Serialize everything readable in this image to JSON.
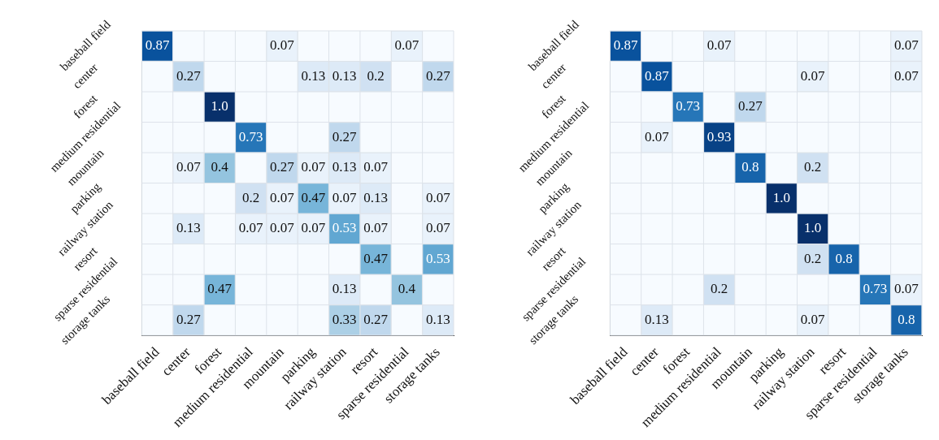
{
  "chart_data": [
    {
      "type": "heatmap",
      "categories": [
        "baseball field",
        "center",
        "forest",
        "medium residential",
        "mountain",
        "parking",
        "railway station",
        "resort",
        "sparse residential",
        "storage tanks"
      ],
      "y_categories": [
        "baseball field",
        "center",
        "forest",
        "medium residential",
        "mountain",
        "parking",
        "railway station",
        "resort",
        "sparse residential",
        "storage tanks"
      ],
      "cells": [
        [
          0.87,
          null,
          null,
          null,
          0.07,
          null,
          null,
          null,
          0.07,
          null
        ],
        [
          null,
          0.27,
          null,
          null,
          null,
          0.13,
          0.13,
          0.2,
          null,
          0.27
        ],
        [
          null,
          null,
          1.0,
          null,
          null,
          null,
          null,
          null,
          null,
          null
        ],
        [
          null,
          null,
          null,
          0.73,
          null,
          null,
          0.27,
          null,
          null,
          null
        ],
        [
          null,
          0.07,
          0.4,
          null,
          0.27,
          0.07,
          0.13,
          0.07,
          null,
          null
        ],
        [
          null,
          null,
          null,
          0.2,
          0.07,
          0.47,
          0.07,
          0.13,
          null,
          0.07
        ],
        [
          null,
          0.13,
          null,
          0.07,
          0.07,
          0.07,
          0.53,
          0.07,
          null,
          0.07
        ],
        [
          null,
          null,
          null,
          null,
          null,
          null,
          null,
          0.47,
          null,
          0.53
        ],
        [
          null,
          null,
          0.47,
          null,
          null,
          null,
          0.13,
          null,
          0.4,
          null
        ],
        [
          null,
          0.27,
          null,
          null,
          null,
          null,
          0.33,
          0.27,
          null,
          0.13
        ]
      ],
      "cell_labels": [
        [
          "0.87",
          null,
          null,
          null,
          "0.07",
          null,
          null,
          null,
          "0.07",
          null
        ],
        [
          null,
          "0.27",
          null,
          null,
          null,
          "0.13",
          "0.13",
          "0.2",
          null,
          "0.27"
        ],
        [
          null,
          null,
          "1.0",
          null,
          null,
          null,
          null,
          null,
          null,
          null
        ],
        [
          null,
          null,
          null,
          "0.73",
          null,
          null,
          "0.27",
          null,
          null,
          null
        ],
        [
          null,
          "0.07",
          "0.4",
          null,
          "0.27",
          "0.07",
          "0.13",
          "0.07",
          null,
          null
        ],
        [
          null,
          null,
          null,
          "0.2",
          "0.07",
          "0.47",
          "0.07",
          "0.13",
          null,
          "0.07"
        ],
        [
          null,
          "0.13",
          null,
          "0.07",
          "0.07",
          "0.07",
          "0.53",
          "0.07",
          null,
          "0.07"
        ],
        [
          null,
          null,
          null,
          null,
          null,
          null,
          null,
          "0.47",
          null,
          "0.53"
        ],
        [
          null,
          null,
          "0.47",
          null,
          null,
          null,
          "0.13",
          null,
          "0.4",
          null
        ],
        [
          null,
          "0.27",
          null,
          null,
          null,
          null,
          "0.33",
          "0.27",
          null,
          "0.13"
        ]
      ]
    },
    {
      "type": "heatmap",
      "categories": [
        "baseball field",
        "center",
        "forest",
        "medium residential",
        "mountain",
        "parking",
        "railway station",
        "resort",
        "sparse residential",
        "storage tanks"
      ],
      "y_categories": [
        "baseball field",
        "center",
        "forest",
        "medium residential",
        "mountain",
        "parking",
        "railway station",
        "resort",
        "sparse residential",
        "storage tanks"
      ],
      "cells": [
        [
          0.87,
          null,
          null,
          0.07,
          null,
          null,
          null,
          null,
          null,
          0.07
        ],
        [
          null,
          0.87,
          null,
          null,
          null,
          null,
          0.07,
          null,
          null,
          0.07
        ],
        [
          null,
          null,
          0.73,
          null,
          0.27,
          null,
          null,
          null,
          null,
          null
        ],
        [
          null,
          0.07,
          null,
          0.93,
          null,
          null,
          null,
          null,
          null,
          null
        ],
        [
          null,
          null,
          null,
          null,
          0.8,
          null,
          0.2,
          null,
          null,
          null
        ],
        [
          null,
          null,
          null,
          null,
          null,
          1.0,
          null,
          null,
          null,
          null
        ],
        [
          null,
          null,
          null,
          null,
          null,
          null,
          1.0,
          null,
          null,
          null
        ],
        [
          null,
          null,
          null,
          null,
          null,
          null,
          0.2,
          0.8,
          null,
          null
        ],
        [
          null,
          null,
          null,
          0.2,
          null,
          null,
          null,
          null,
          0.73,
          0.07
        ],
        [
          null,
          0.13,
          null,
          null,
          null,
          null,
          0.07,
          null,
          null,
          0.8
        ]
      ],
      "cell_labels": [
        [
          "0.87",
          null,
          null,
          "0.07",
          null,
          null,
          null,
          null,
          null,
          "0.07"
        ],
        [
          null,
          "0.87",
          null,
          null,
          null,
          null,
          "0.07",
          null,
          null,
          "0.07"
        ],
        [
          null,
          null,
          "0.73",
          null,
          "0.27",
          null,
          null,
          null,
          null,
          null
        ],
        [
          null,
          "0.07",
          null,
          "0.93",
          null,
          null,
          null,
          null,
          null,
          null
        ],
        [
          null,
          null,
          null,
          null,
          "0.8",
          null,
          "0.2",
          null,
          null,
          null
        ],
        [
          null,
          null,
          null,
          null,
          null,
          "1.0",
          null,
          null,
          null,
          null
        ],
        [
          null,
          null,
          null,
          null,
          null,
          null,
          "1.0",
          null,
          null,
          null
        ],
        [
          null,
          null,
          null,
          null,
          null,
          null,
          "0.2",
          "0.8",
          null,
          null
        ],
        [
          null,
          null,
          null,
          "0.2",
          null,
          null,
          null,
          null,
          "0.73",
          "0.07"
        ],
        [
          null,
          "0.13",
          null,
          null,
          null,
          null,
          "0.07",
          null,
          null,
          "0.8"
        ]
      ]
    }
  ]
}
